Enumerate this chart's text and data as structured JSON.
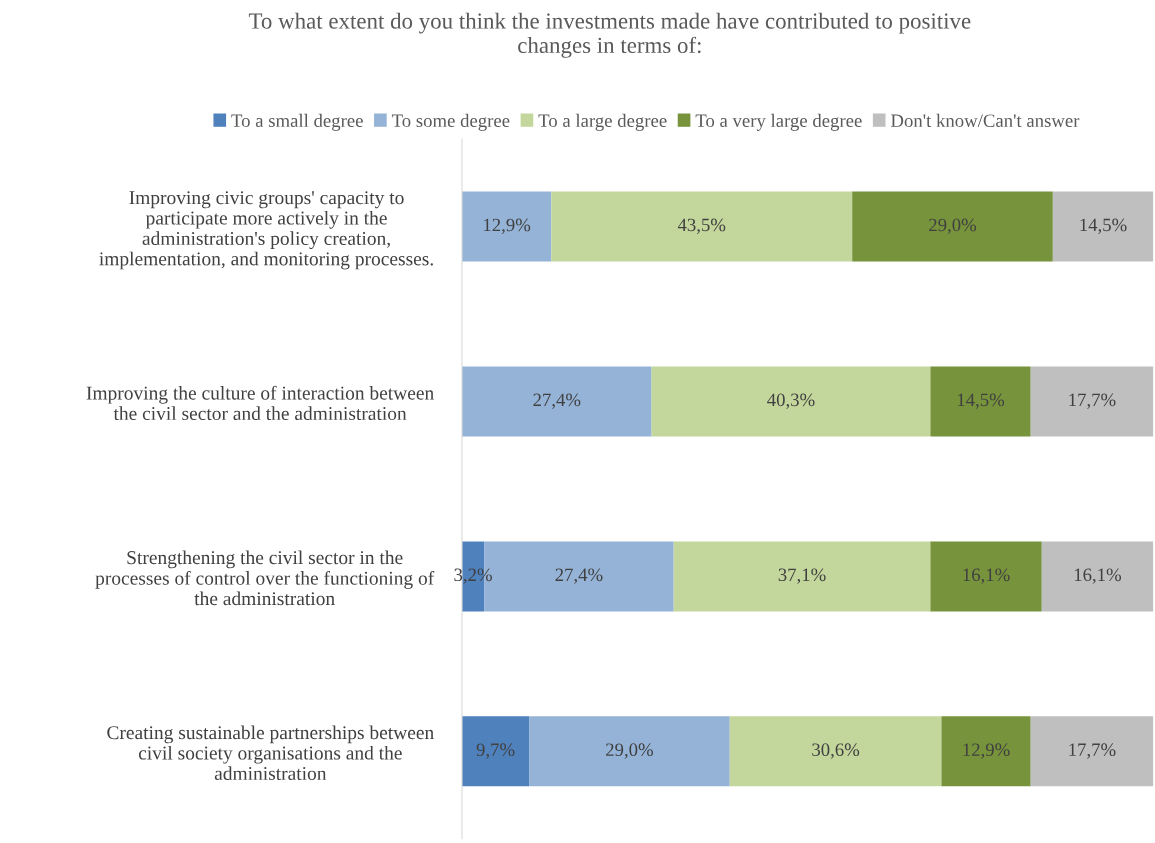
{
  "chart_data": {
    "type": "bar",
    "orientation": "horizontal",
    "stacked": true,
    "title": "To what extent do you think the investments made have contributed to positive\nchanges in terms of:",
    "categories": [
      "Improving civic groups' capacity to\nparticipate more actively in the\nadministration's policy creation,\nimplementation, and monitoring processes.",
      "Improving the culture of interaction between\nthe civil sector and the administration",
      "Strengthening the civil sector in the\nprocesses of control over the functioning of\nthe administration",
      "Creating sustainable partnerships between\ncivil society organisations and the\nadministration"
    ],
    "series": [
      {
        "name": "To a small degree",
        "color": "#4f81bd",
        "values": [
          0,
          0,
          3.2,
          9.7
        ],
        "value_labels": [
          null,
          null,
          "3,2%",
          "9,7%"
        ]
      },
      {
        "name": "To some degree",
        "color": "#95b3d7",
        "values": [
          12.9,
          27.4,
          27.4,
          29.0
        ],
        "value_labels": [
          "12,9%",
          "27,4%",
          "27,4%",
          "29,0%"
        ]
      },
      {
        "name": "To a large degree",
        "color": "#c3d69b",
        "values": [
          43.5,
          40.3,
          37.1,
          30.6
        ],
        "value_labels": [
          "43,5%",
          "40,3%",
          "37,1%",
          "30,6%"
        ]
      },
      {
        "name": "To a very large degree",
        "color": "#77933c",
        "values": [
          29.0,
          14.5,
          16.1,
          12.9
        ],
        "value_labels": [
          "29,0%",
          "14,5%",
          "16,1%",
          "12,9%"
        ]
      },
      {
        "name": "Don't know/Can't answer",
        "color": "#bfbfbf",
        "values": [
          14.5,
          17.7,
          16.1,
          17.7
        ],
        "value_labels": [
          "14,5%",
          "17,7%",
          "16,1%",
          "17,7%"
        ]
      }
    ],
    "xlim": [
      0,
      100
    ],
    "tick_labels": "y",
    "legend": "top",
    "grid": false
  }
}
